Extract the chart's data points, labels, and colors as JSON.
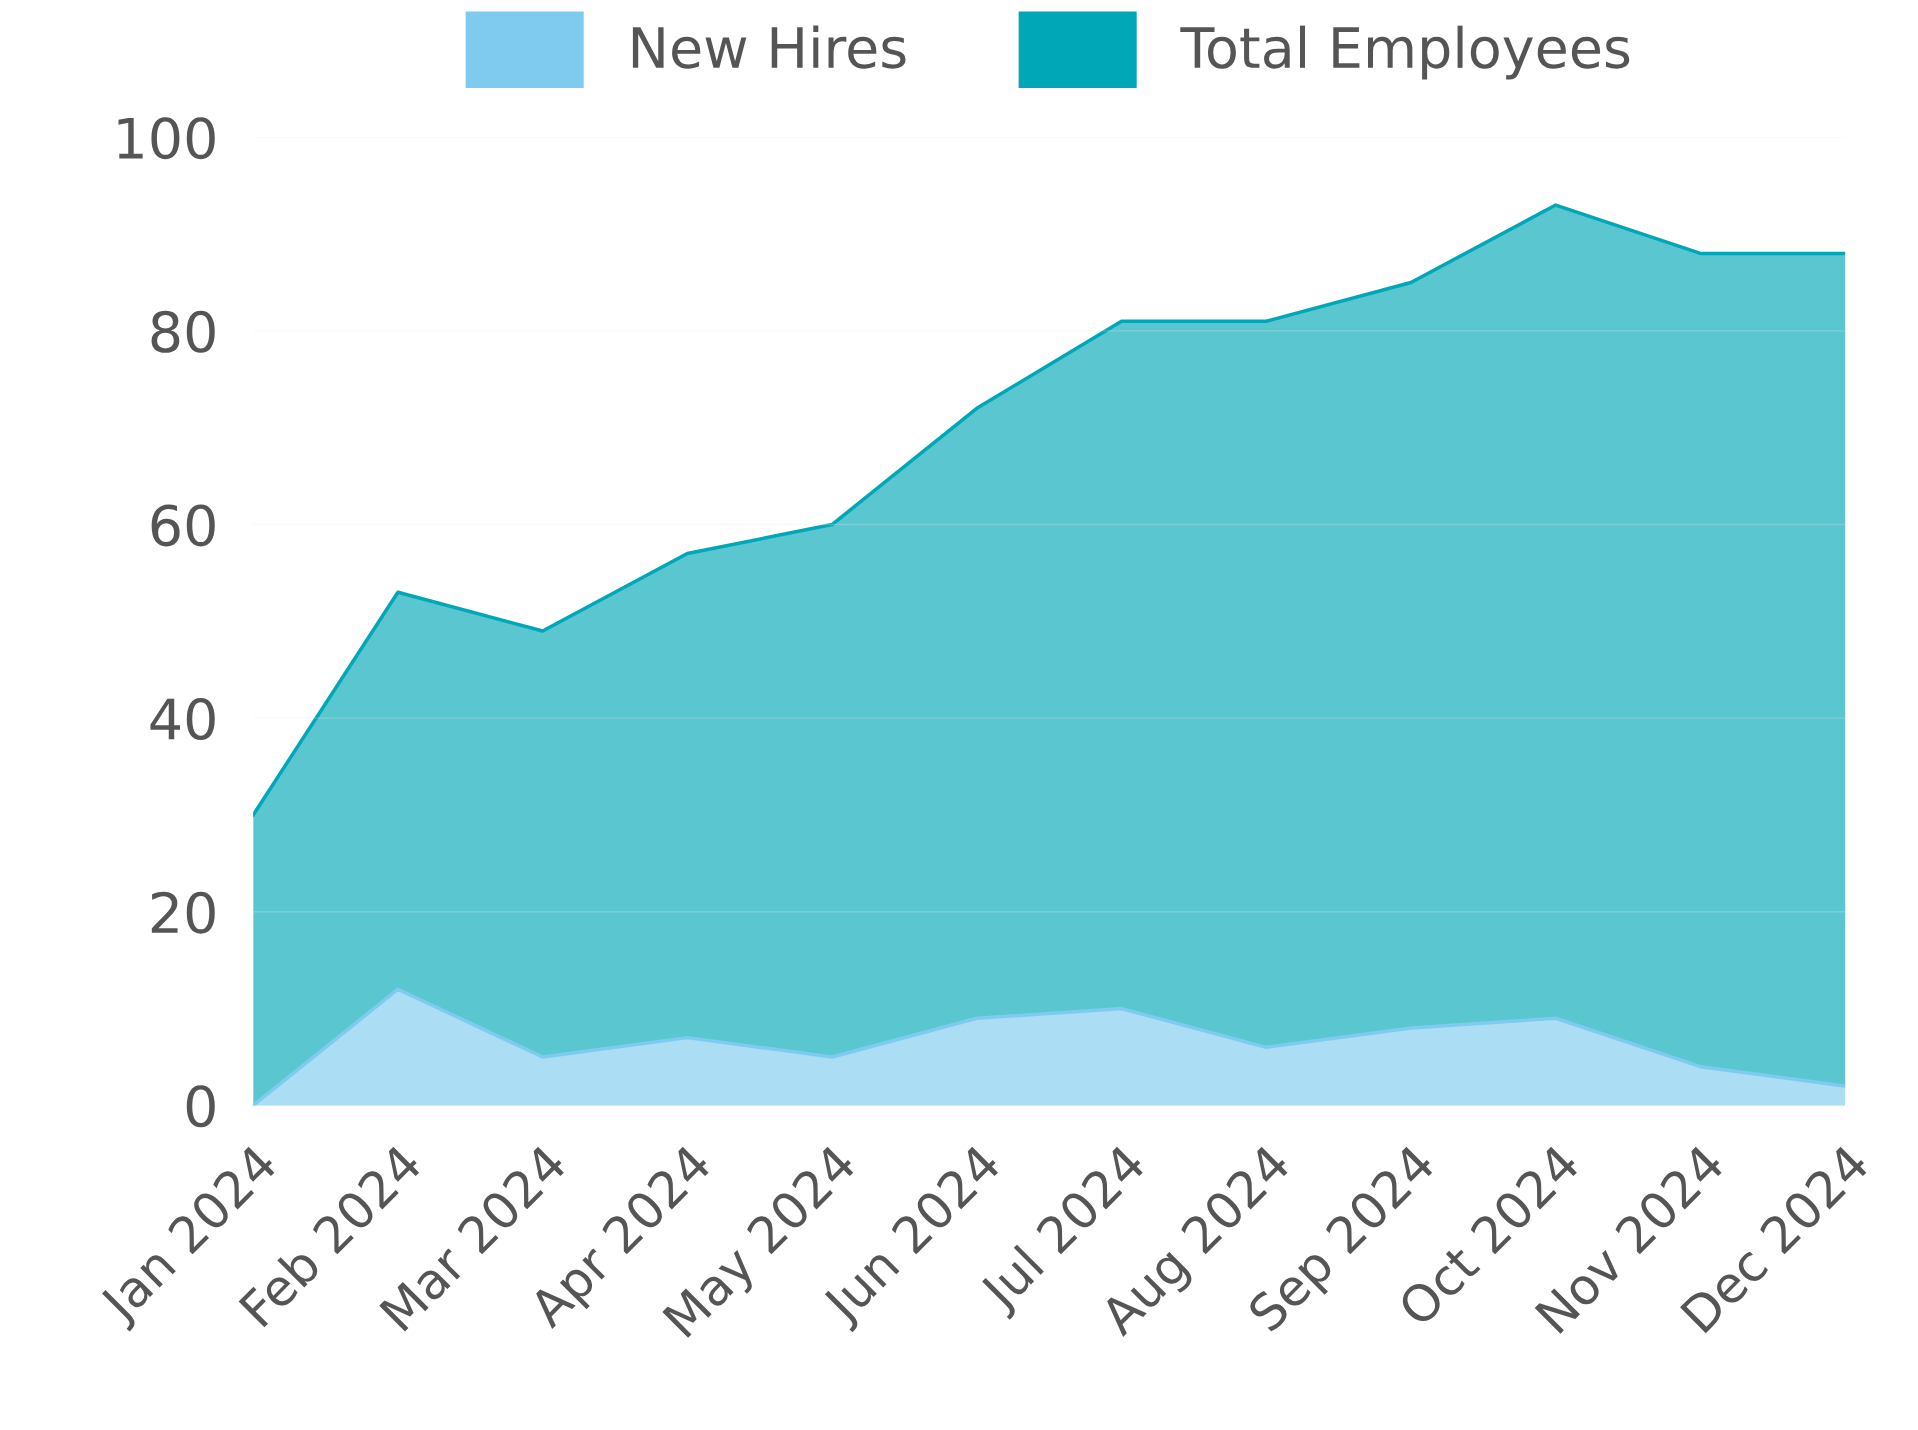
{
  "chart_data": {
    "type": "area",
    "categories": [
      "Jan 2024",
      "Feb 2024",
      "Mar 2024",
      "Apr 2024",
      "May 2024",
      "Jun 2024",
      "Jul 2024",
      "Aug 2024",
      "Sep 2024",
      "Oct 2024",
      "Nov 2024",
      "Dec 2024"
    ],
    "series": [
      {
        "name": "New Hires",
        "color": "#7ecbef",
        "values": [
          0,
          12,
          5,
          7,
          5,
          9,
          10,
          6,
          8,
          9,
          4,
          2
        ]
      },
      {
        "name": "Total Employees",
        "color": "#00a7b7",
        "values": [
          30,
          53,
          49,
          57,
          60,
          72,
          81,
          81,
          85,
          93,
          88,
          88
        ]
      }
    ],
    "ylim": [
      0,
      100
    ],
    "yticks": [
      0,
      20,
      40,
      60,
      80,
      100
    ],
    "grid": "y",
    "legend": "top"
  }
}
